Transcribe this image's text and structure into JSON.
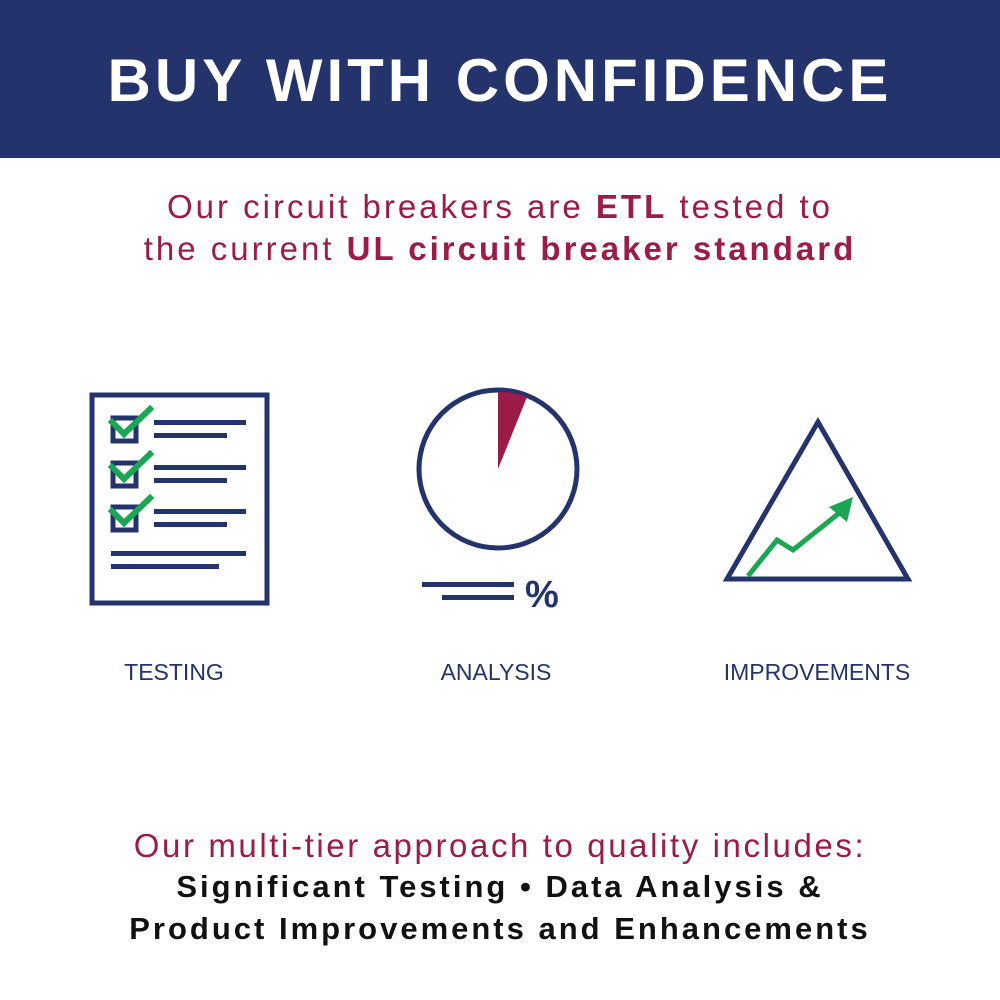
{
  "colors": {
    "navy": "#24336b",
    "crimson": "#9b1c47",
    "green": "#1aa653"
  },
  "header": {
    "title": "BUY WITH CONFIDENCE"
  },
  "intro": {
    "line1_pre": "Our circuit breakers are ",
    "line1_bold": "ETL",
    "line1_post": " tested to",
    "line2_pre": "the current ",
    "line2_bold": "UL circuit breaker standard"
  },
  "features": [
    {
      "label": "TESTING",
      "icon": "checklist-icon"
    },
    {
      "label": "ANALYSIS",
      "icon": "pie-chart-percent-icon"
    },
    {
      "label": "IMPROVEMENTS",
      "icon": "mountain-growth-arrow-icon"
    }
  ],
  "analysis_icon": {
    "symbol": "%"
  },
  "footer": {
    "lead": "Our multi-tier approach to quality includes:",
    "line1": "Significant Testing • Data Analysis &",
    "line2": "Product Improvements and Enhancements"
  }
}
